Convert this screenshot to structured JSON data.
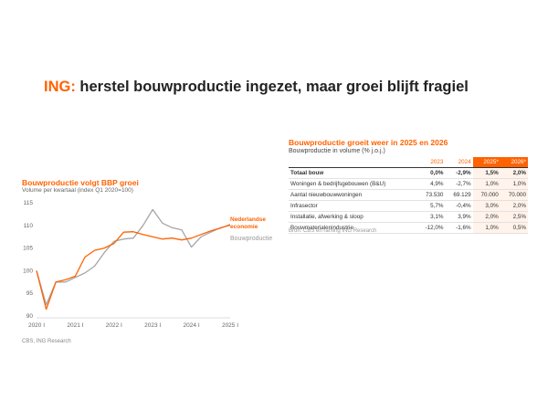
{
  "headline": {
    "brand": "ING:",
    "text": " herstel bouwproductie ingezet, maar groei blijft fragiel"
  },
  "chart": {
    "title": "Bouwproductie volgt BBP groei",
    "subtitle": "Volume per kwartaal (index Q1 2020=100)",
    "source": "CBS, ING Research"
  },
  "table": {
    "title": "Bouwproductie groeit weer in 2025 en 2026",
    "subtitle": "Bouwproductie in volume (% j.o.j.)",
    "headers": [
      "",
      "2023",
      "2024",
      "2025*",
      "2026*"
    ],
    "rows": [
      {
        "label": "Totaal bouw",
        "values": [
          "0,0%",
          "-2,9%",
          "1,5%",
          "2,0%"
        ],
        "bold": true
      },
      {
        "label": "Woningen & bedrijfsgebouwen (B&U)",
        "values": [
          "4,9%",
          "-2,7%",
          "1,0%",
          "1,0%"
        ]
      },
      {
        "label": "Aantal nieuwbouwwoningen",
        "values": [
          "73.530",
          "69.129",
          "70.000",
          "70.000"
        ]
      },
      {
        "label": "Infrasector",
        "values": [
          "5,7%",
          "-0,4%",
          "3,0%",
          "2,0%"
        ]
      },
      {
        "label": "Installatie, afwerking & sloop",
        "values": [
          "3,1%",
          "3,9%",
          "2,0%",
          "2,5%"
        ]
      },
      {
        "label": "Bouwmaterialenindustrie",
        "values": [
          "-12,0%",
          "-1,6%",
          "1,0%",
          "0,5%"
        ]
      }
    ],
    "source": "Bron: CBS en raming ING Research"
  },
  "chart_data": {
    "type": "line",
    "title": "Bouwproductie volgt BBP groei",
    "ylabel": "Volume per kwartaal (index Q1 2020=100)",
    "x": [
      "2020 I",
      "2020 II",
      "2020 III",
      "2020 IV",
      "2021 I",
      "2021 II",
      "2021 III",
      "2021 IV",
      "2022 I",
      "2022 II",
      "2022 III",
      "2022 IV",
      "2023 I",
      "2023 II",
      "2023 III",
      "2023 IV",
      "2024 I",
      "2024 II",
      "2024 III",
      "2024 IV",
      "2025 I"
    ],
    "xticks": [
      "2020 I",
      "2021 I",
      "2022 I",
      "2023 I",
      "2024 I",
      "2025 I"
    ],
    "ylim": [
      90,
      115
    ],
    "yticks": [
      90,
      95,
      100,
      105,
      110,
      115
    ],
    "grid": false,
    "series": [
      {
        "name": "Nederlandse economie",
        "color": "#ff6200",
        "values": [
          100,
          91.5,
          97.5,
          98.0,
          98.8,
          103.0,
          104.5,
          105.0,
          106.0,
          108.5,
          108.6,
          108.0,
          107.5,
          107.0,
          107.2,
          106.8,
          107.2,
          108.0,
          108.8,
          109.4,
          110.2
        ]
      },
      {
        "name": "Bouwproductie",
        "color": "#a6a6a6",
        "values": [
          100,
          92.5,
          97.5,
          97.5,
          98.5,
          99.5,
          101.0,
          104.0,
          106.5,
          107.0,
          107.2,
          110.0,
          113.5,
          110.5,
          109.5,
          109.0,
          105.2,
          107.5,
          108.5,
          109.5,
          110.0
        ]
      }
    ]
  }
}
